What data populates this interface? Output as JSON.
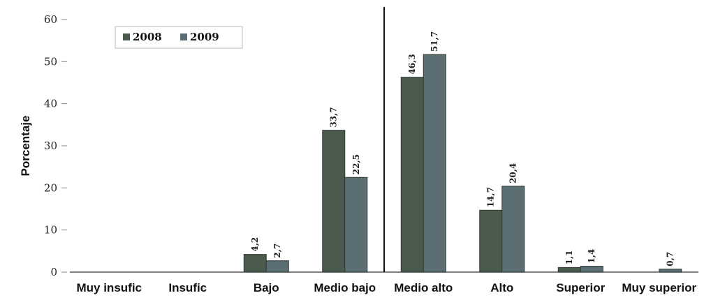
{
  "chart_data": {
    "type": "bar",
    "categories": [
      "Muy insufic",
      "Insufic",
      "Bajo",
      "Medio bajo",
      "Medio alto",
      "Alto",
      "Superior",
      "Muy superior"
    ],
    "series": [
      {
        "name": "2008",
        "values": [
          null,
          null,
          4.2,
          33.7,
          46.3,
          14.7,
          1.1,
          null
        ],
        "labels": [
          "",
          "",
          "4,2",
          "33,7",
          "46,3",
          "14,7",
          "1,1",
          ""
        ],
        "color": "#4a5a4c"
      },
      {
        "name": "2009",
        "values": [
          null,
          null,
          2.7,
          22.5,
          51.7,
          20.4,
          1.4,
          0.7
        ],
        "labels": [
          "",
          "",
          "2,7",
          "22,5",
          "51,7",
          "20,4",
          "1,4",
          "0,7"
        ],
        "color": "#5b6e73"
      }
    ],
    "ylabel": "Porcentaje",
    "yticks": [
      0,
      10,
      20,
      30,
      40,
      50,
      60
    ],
    "ylim": [
      0,
      60
    ],
    "legend_placement": "top-left",
    "divider_after_category": "Medio bajo",
    "grid": false
  }
}
